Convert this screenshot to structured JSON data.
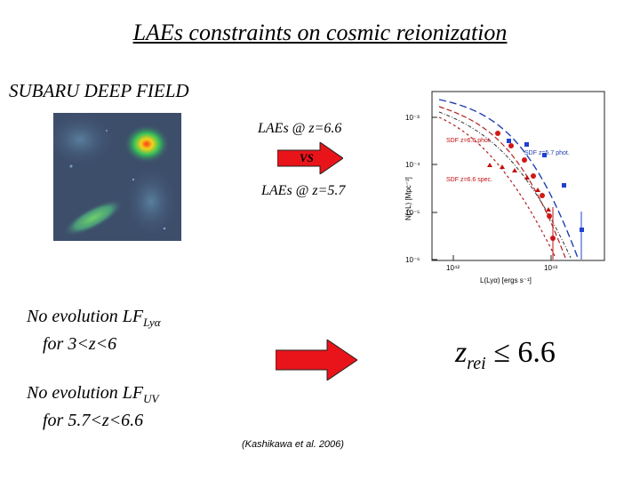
{
  "title": "LAEs constraints on cosmic reionization",
  "section_label": "SUBARU DEEP FIELD",
  "lae_top": "LAEs @ z=6.6",
  "vs_label": "VS",
  "lae_bottom": "LAEs @ z=5.7",
  "evolution_1": {
    "prefix": "No evolution LF",
    "subscript": "Lyα",
    "range": "for 3<z<6"
  },
  "evolution_2": {
    "prefix": "No evolution LF",
    "subscript": "UV",
    "range": "for 5.7<z<6.6"
  },
  "result": {
    "symbol": "z",
    "subscript": "rei",
    "relation": "≤ 6.6"
  },
  "citation": "(Kashikawa et al. 2006)",
  "arrow_color": "#e8141a",
  "plot": {
    "ylabel": "N(>L) [Mpc⁻³]",
    "xlabel": "L(Lyα) [ergs s⁻¹]",
    "yticks": [
      "10⁻³",
      "10⁻⁴",
      "10⁻⁵",
      "10⁻⁶"
    ],
    "xticks": [
      "10⁴²",
      "10⁴³"
    ],
    "legend": [
      "SDF z=6.6 phot.",
      "SDF z=5.7 phot.",
      "SDF z=6.6 spec."
    ]
  }
}
